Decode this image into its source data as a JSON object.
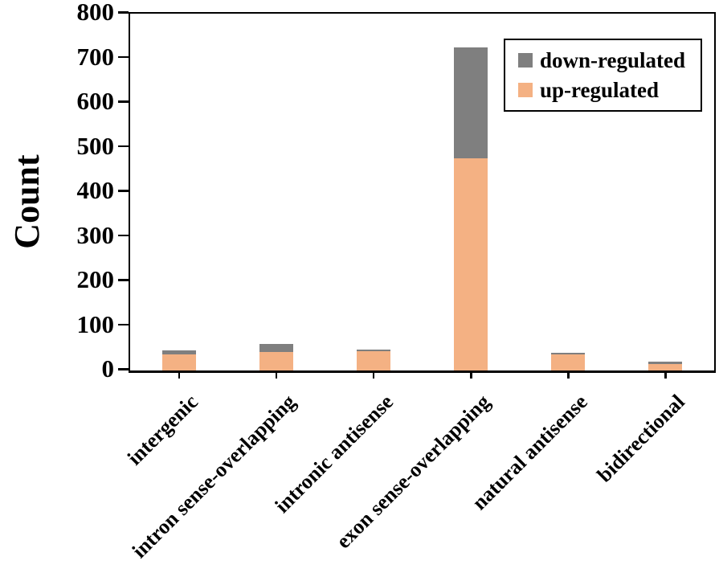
{
  "chart_data": {
    "type": "bar",
    "stacked": true,
    "title": "",
    "xlabel": "",
    "ylabel": "Count",
    "ylim": [
      0,
      800
    ],
    "yticks": [
      0,
      100,
      200,
      300,
      400,
      500,
      600,
      700,
      800
    ],
    "grid": false,
    "categories": [
      "intergenic",
      "intron sense-overlapping",
      "intronic antisense",
      "exon sense-overlapping",
      "natural antisense",
      "bidirectional"
    ],
    "series": [
      {
        "name": "up-regulated",
        "color": "#f4b183",
        "values": [
          36,
          42,
          43,
          475,
          36,
          15
        ]
      },
      {
        "name": "down-regulated",
        "color": "#7f7f7f",
        "values": [
          9,
          18,
          4,
          250,
          4,
          5
        ]
      }
    ],
    "legend": {
      "position": "top-right",
      "items": [
        {
          "label": "down-regulated",
          "series": "down-regulated"
        },
        {
          "label": "up-regulated",
          "series": "up-regulated"
        }
      ]
    },
    "colors": {
      "axis": "#000000",
      "background": "#ffffff",
      "up_regulated": "#f4b183",
      "down_regulated": "#7f7f7f"
    }
  }
}
